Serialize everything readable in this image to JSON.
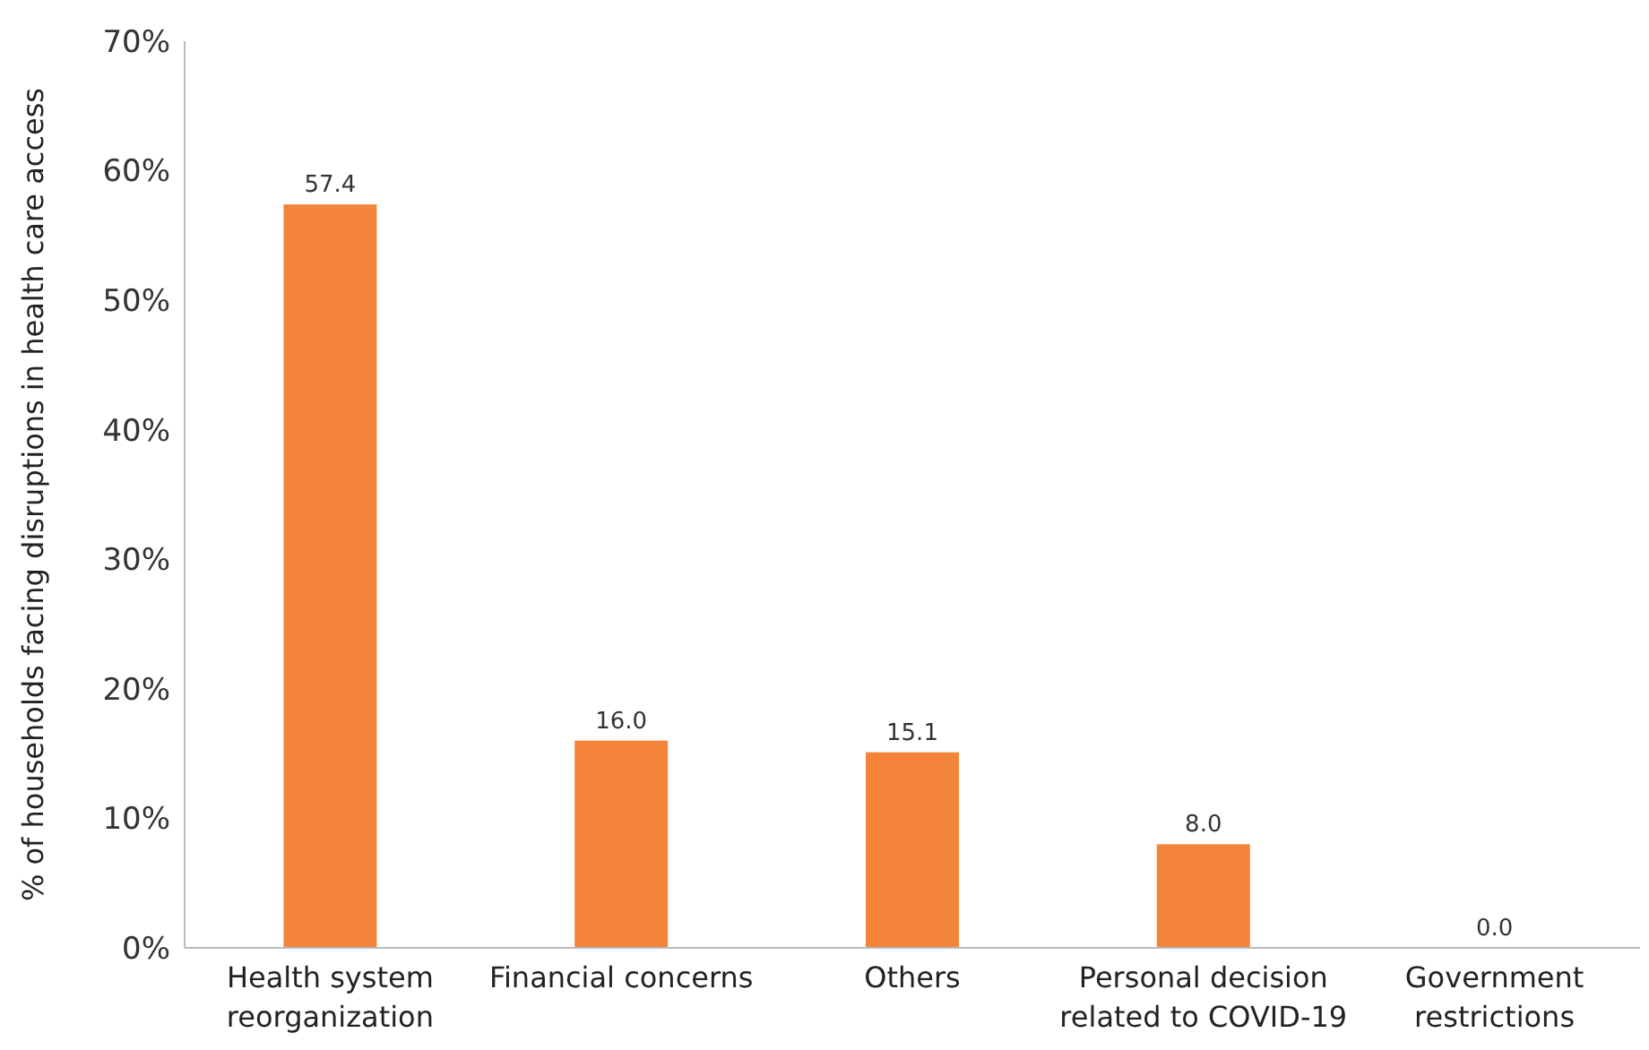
{
  "chart_data": {
    "type": "bar",
    "ylabel": "% of households facing disruptions in health care access",
    "categories": [
      "Health system reorganization",
      "Financial concerns",
      "Others",
      "Personal decision related to COVID-19",
      "Government restrictions"
    ],
    "values": [
      57.4,
      16.0,
      15.1,
      8.0,
      0.0
    ],
    "value_labels": [
      "57.4",
      "16.0",
      "15.1",
      "8.0",
      "0.0"
    ],
    "color": "#f4843a",
    "ylim": [
      0,
      70
    ],
    "yticks": [
      {
        "value": 0,
        "label": "0%"
      },
      {
        "value": 10,
        "label": "10%"
      },
      {
        "value": 20,
        "label": "20%"
      },
      {
        "value": 30,
        "label": "30%"
      },
      {
        "value": 40,
        "label": "40%"
      },
      {
        "value": 50,
        "label": "50%"
      },
      {
        "value": 60,
        "label": "60%"
      },
      {
        "value": 70,
        "label": "70%"
      }
    ],
    "grid": false
  }
}
